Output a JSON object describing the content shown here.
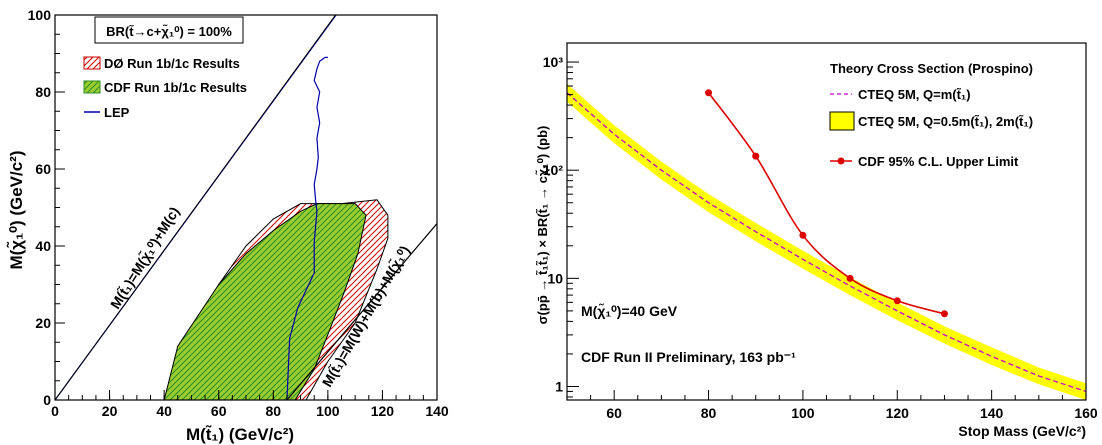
{
  "chart_data": [
    {
      "type": "area",
      "title": "",
      "xlabel": "M(t̃₁) (GeV/c²)",
      "ylabel": "M(χ̃₁⁰) (GeV/c²)",
      "xlim": [
        0,
        140
      ],
      "ylim": [
        0,
        100
      ],
      "xticks": [
        "0",
        "20",
        "40",
        "60",
        "80",
        "100",
        "120",
        "140"
      ],
      "yticks": [
        "0",
        "20",
        "40",
        "60",
        "80",
        "100"
      ],
      "grid": false,
      "legend_position": "top-left",
      "box_label": "BR(t̃→c+χ̃₁⁰) = 100%",
      "series": [
        {
          "name": "DØ Run 1b/1c Results",
          "color": "#cc0000",
          "points": [
            [
              40,
              0
            ],
            [
              45,
              12
            ],
            [
              60,
              30
            ],
            [
              70,
              40
            ],
            [
              80,
              47
            ],
            [
              90,
              51
            ],
            [
              105,
              51
            ],
            [
              118,
              52
            ],
            [
              122,
              48
            ],
            [
              122,
              42
            ],
            [
              118,
              34
            ],
            [
              110,
              20
            ],
            [
              100,
              10
            ],
            [
              92,
              0
            ]
          ]
        },
        {
          "name": "CDF Run 1b/1c Results",
          "color": "#33aa33",
          "points": [
            [
              40,
              0
            ],
            [
              45,
              14
            ],
            [
              60,
              30
            ],
            [
              70,
              38
            ],
            [
              80,
              44
            ],
            [
              90,
              49
            ],
            [
              96,
              51
            ],
            [
              110,
              51
            ],
            [
              114,
              48
            ],
            [
              111,
              38
            ],
            [
              106,
              28
            ],
            [
              100,
              17
            ],
            [
              95,
              8
            ],
            [
              88,
              0
            ]
          ]
        },
        {
          "name": "LEP",
          "color": "#0000aa",
          "points": [
            [
              85,
              0
            ],
            [
              86,
              16
            ],
            [
              89,
              24
            ],
            [
              93,
              30
            ],
            [
              95,
              33
            ],
            [
              95,
              41
            ],
            [
              96,
              49
            ],
            [
              95.5,
              52
            ],
            [
              95,
              56
            ],
            [
              96,
              60
            ],
            [
              96.5,
              63
            ],
            [
              96,
              68
            ],
            [
              97,
              72
            ],
            [
              96,
              76
            ],
            [
              97,
              80
            ],
            [
              95,
              83
            ],
            [
              96,
              86
            ],
            [
              97,
              88
            ],
            [
              99,
              89
            ],
            [
              100,
              89
            ]
          ]
        }
      ],
      "lines": [
        {
          "label": "M(t̃₁)=M(χ̃₁⁰)+M(c)",
          "from": [
            0,
            0
          ],
          "to": [
            103,
            100
          ]
        },
        {
          "label": "M(t̃₁)=M(W)+M(b)+M(χ̃₁⁰)",
          "from": [
            85,
            0
          ],
          "to": [
            145,
            50
          ]
        }
      ]
    },
    {
      "type": "line",
      "title": "",
      "xlabel": "Stop Mass (GeV/c²)",
      "ylabel": "σ(pp̄ → t̃₁t̃₁) × BR(t̃₁ → cχ̃₁⁰) (pb)",
      "xlim": [
        50,
        160
      ],
      "ylim": [
        0.75,
        1500
      ],
      "y_scale": "log",
      "xticks": [
        "60",
        "80",
        "100",
        "120",
        "140",
        "160"
      ],
      "yticks": [
        "1",
        "10",
        "10²",
        "10³"
      ],
      "legend_position": "top-right",
      "legend_title": "Theory Cross Section (Prospino)",
      "annotations": [
        "M(χ̃₁⁰)=40 GeV",
        "CDF Run II Preliminary, 163 pb⁻¹"
      ],
      "series": [
        {
          "name": "CTEQ 5M, Q=m(t̃₁)",
          "color": "#cc00cc",
          "x": [
            50,
            60,
            70,
            80,
            90,
            100,
            110,
            120,
            130,
            140,
            150,
            160
          ],
          "y": [
            520,
            215,
            100,
            50,
            27,
            15,
            8.5,
            5.0,
            3.0,
            1.9,
            1.25,
            0.9
          ]
        },
        {
          "name": "CTEQ 5M, Q=0.5m(t̃₁), 2m(t̃₁)",
          "color": "#ffff00",
          "x": [
            50,
            60,
            70,
            80,
            90,
            100,
            110,
            120,
            130,
            140,
            150,
            160
          ],
          "y_low": [
            430,
            178,
            82,
            41,
            22,
            12.3,
            7.0,
            4.1,
            2.5,
            1.58,
            1.05,
            0.75
          ],
          "y_high": [
            630,
            260,
            120,
            60,
            32.5,
            18,
            10.2,
            6.0,
            3.6,
            2.3,
            1.5,
            1.07
          ]
        },
        {
          "name": "CDF 95% C.L. Upper Limit",
          "color": "#dd0000",
          "x": [
            80,
            90,
            100,
            110,
            120,
            130
          ],
          "y": [
            520,
            135,
            25,
            10,
            6.2,
            4.7
          ]
        }
      ]
    }
  ]
}
